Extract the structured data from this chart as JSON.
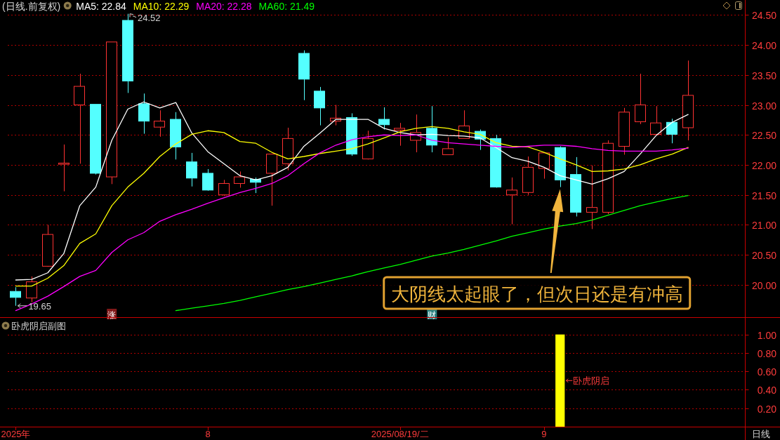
{
  "chart_data": [
    {
      "type": "candlestick",
      "title": "(日线.前复权)",
      "categories": [
        null,
        null,
        null,
        null,
        null,
        null,
        "涨",
        null,
        null,
        null,
        null,
        null,
        null,
        null,
        null,
        null,
        null,
        null,
        null,
        null,
        null,
        null,
        null,
        null,
        null,
        null,
        "财",
        null,
        null,
        null,
        null,
        null,
        null,
        null,
        null,
        null,
        null,
        null,
        null,
        null,
        null,
        null,
        null,
        null,
        null,
        null
      ],
      "ohlc": [
        [
          19.89,
          19.96,
          19.65,
          19.79
        ],
        [
          19.78,
          20.14,
          19.71,
          20.05
        ],
        [
          20.31,
          21.0,
          20.3,
          20.84
        ],
        [
          22.01,
          22.34,
          21.56,
          22.03
        ],
        [
          23.0,
          23.52,
          22.02,
          23.31
        ],
        [
          23.01,
          23.01,
          21.84,
          21.86
        ],
        [
          21.8,
          24.05,
          21.68,
          24.05
        ],
        [
          24.41,
          24.52,
          23.2,
          23.4
        ],
        [
          23.02,
          23.19,
          22.52,
          22.73
        ],
        [
          22.63,
          22.91,
          22.47,
          22.73
        ],
        [
          22.76,
          22.88,
          22.09,
          22.3
        ],
        [
          22.05,
          22.2,
          21.64,
          21.78
        ],
        [
          21.86,
          21.93,
          21.57,
          21.58
        ],
        [
          21.5,
          21.75,
          21.48,
          21.69
        ],
        [
          21.69,
          21.89,
          21.62,
          21.8
        ],
        [
          21.76,
          21.79,
          21.53,
          21.71
        ],
        [
          21.86,
          22.18,
          21.32,
          22.18
        ],
        [
          22.02,
          22.62,
          21.91,
          22.44
        ],
        [
          23.86,
          23.91,
          23.08,
          23.43
        ],
        [
          23.23,
          23.3,
          22.66,
          22.95
        ],
        [
          22.73,
          23.0,
          22.66,
          22.78
        ],
        [
          22.79,
          22.86,
          22.15,
          22.18
        ],
        [
          22.1,
          22.57,
          22.09,
          22.44
        ],
        [
          22.76,
          22.96,
          22.59,
          22.67
        ],
        [
          22.58,
          22.7,
          22.32,
          22.61
        ],
        [
          22.41,
          22.84,
          22.21,
          22.54
        ],
        [
          22.61,
          22.98,
          22.21,
          22.33
        ],
        [
          22.17,
          22.46,
          22.17,
          22.27
        ],
        [
          22.44,
          22.91,
          22.44,
          22.65
        ],
        [
          22.56,
          22.59,
          22.25,
          22.43
        ],
        [
          22.44,
          22.5,
          21.62,
          21.63
        ],
        [
          21.5,
          21.79,
          21.01,
          21.58
        ],
        [
          21.54,
          22.14,
          21.5,
          21.96
        ],
        [
          21.94,
          22.2,
          21.77,
          22.2
        ],
        [
          22.29,
          22.31,
          21.63,
          21.75
        ],
        [
          21.84,
          22.13,
          21.14,
          21.21
        ],
        [
          21.21,
          21.99,
          20.93,
          21.29
        ],
        [
          21.21,
          22.41,
          21.18,
          22.36
        ],
        [
          22.31,
          22.95,
          22.17,
          22.88
        ],
        [
          22.72,
          23.52,
          22.68,
          23.0
        ],
        [
          22.51,
          22.98,
          22.5,
          22.7
        ],
        [
          22.71,
          22.77,
          22.36,
          22.51
        ],
        [
          22.62,
          23.74,
          22.41,
          23.16
        ],
        null,
        null,
        null
      ],
      "colors": [
        "#54ffff",
        "#ff3232",
        "#ff3232",
        "#ff3232",
        "#ff3232",
        "#54ffff",
        "#ff3232",
        "#54ffff",
        "#54ffff",
        "#ff3232",
        "#54ffff",
        "#54ffff",
        "#54ffff",
        "#ff3232",
        "#ff3232",
        "#54ffff",
        "#ff3232",
        "#ff3232",
        "#54ffff",
        "#54ffff",
        "#ff3232",
        "#54ffff",
        "#ff3232",
        "#54ffff",
        "#ff3232",
        "#ff3232",
        "#54ffff",
        "#ff3232",
        "#ff3232",
        "#54ffff",
        "#54ffff",
        "#ff3232",
        "#ff3232",
        "#ff3232",
        "#54ffff",
        "#54ffff",
        "#ff3232",
        "#ff3232",
        "#ff3232",
        "#ff3232",
        "#ff3232",
        "#54ffff",
        "#ff3232",
        null,
        null,
        null
      ],
      "series": [
        {
          "name": "MA5: 22.84",
          "type": "line",
          "color": "#ffffff",
          "values": [
            20.08,
            20.09,
            20.2,
            20.52,
            21.32,
            21.63,
            22.41,
            22.93,
            23.05,
            22.95,
            23.04,
            22.53,
            22.22,
            22.02,
            21.82,
            21.75,
            21.82,
            21.96,
            22.31,
            22.53,
            22.76,
            22.76,
            22.76,
            22.61,
            22.54,
            22.5,
            22.51,
            22.49,
            22.48,
            22.45,
            22.29,
            22.12,
            22.06,
            21.96,
            21.82,
            21.75,
            21.68,
            21.77,
            21.89,
            22.18,
            22.49,
            22.71,
            22.84,
            null,
            null,
            null
          ]
        },
        {
          "name": "MA10: 22.29",
          "type": "line",
          "color": "#ffff00",
          "values": [
            19.98,
            19.98,
            20.11,
            20.32,
            20.69,
            20.85,
            21.32,
            21.63,
            21.86,
            22.14,
            22.35,
            22.51,
            22.57,
            22.54,
            22.39,
            22.36,
            22.21,
            22.1,
            22.14,
            22.19,
            22.23,
            22.27,
            22.35,
            22.45,
            22.55,
            22.61,
            22.64,
            22.61,
            22.55,
            22.51,
            22.37,
            22.31,
            22.3,
            22.21,
            22.1,
            22.0,
            21.89,
            21.9,
            21.93,
            22.0,
            22.1,
            22.18,
            22.29,
            null,
            null,
            null
          ]
        },
        {
          "name": "MA20: 22.28",
          "type": "line",
          "color": "#ff00ff",
          "values": [
            19.57,
            19.68,
            19.81,
            19.97,
            20.14,
            20.24,
            20.54,
            20.75,
            20.87,
            21.06,
            21.17,
            21.26,
            21.36,
            21.45,
            21.54,
            21.61,
            21.69,
            21.82,
            22.02,
            22.2,
            22.33,
            22.42,
            22.47,
            22.5,
            22.49,
            22.5,
            22.41,
            22.37,
            22.35,
            22.33,
            22.31,
            22.29,
            22.31,
            22.33,
            22.33,
            22.31,
            22.27,
            22.24,
            22.23,
            22.23,
            22.23,
            22.25,
            22.28,
            null,
            null,
            null
          ]
        },
        {
          "name": "MA60: 21.49",
          "type": "line",
          "color": "#00ff00",
          "values": [
            null,
            null,
            null,
            null,
            null,
            null,
            null,
            null,
            null,
            null,
            19.57,
            19.61,
            19.65,
            19.69,
            19.74,
            19.8,
            19.86,
            19.92,
            19.97,
            20.03,
            20.09,
            20.15,
            20.22,
            20.28,
            20.34,
            20.41,
            20.48,
            20.53,
            20.59,
            20.66,
            20.73,
            20.81,
            20.87,
            20.93,
            20.98,
            21.02,
            21.08,
            21.16,
            21.24,
            21.32,
            21.38,
            21.44,
            21.49,
            null,
            null,
            null
          ]
        }
      ],
      "ylim": [
        19.46,
        24.75
      ],
      "yticks": [
        {
          "value": 20.0,
          "label": "20.00"
        },
        {
          "value": 20.5,
          "label": "20.50"
        },
        {
          "value": 21.0,
          "label": "21.00"
        },
        {
          "value": 21.5,
          "label": "21.50"
        },
        {
          "value": 22.0,
          "label": "22.00"
        },
        {
          "value": 22.5,
          "label": "22.50"
        },
        {
          "value": 23.0,
          "label": "23.00"
        },
        {
          "value": 23.5,
          "label": "23.50"
        },
        {
          "value": 24.0,
          "label": "24.00"
        },
        {
          "value": 24.5,
          "label": "24.50"
        }
      ],
      "grid": "y",
      "legend": "top left",
      "annotations": [
        "24.52",
        "19.65",
        "大阴线太起眼了，但次日还是有冲高"
      ]
    },
    {
      "type": "bar",
      "title": "卧虎阴启副图",
      "categories": [
        "2025年",
        null,
        null,
        null,
        null,
        null,
        null,
        null,
        null,
        null,
        null,
        null,
        "8",
        null,
        null,
        null,
        null,
        null,
        null,
        null,
        null,
        null,
        null,
        null,
        "2025/08/19/二",
        null,
        null,
        null,
        null,
        null,
        null,
        null,
        null,
        "9",
        null,
        null,
        null,
        null,
        null,
        null,
        null,
        null,
        null,
        null,
        null,
        null
      ],
      "values": [
        null,
        null,
        null,
        null,
        null,
        null,
        null,
        null,
        null,
        null,
        null,
        null,
        null,
        null,
        null,
        null,
        null,
        null,
        null,
        null,
        null,
        null,
        null,
        null,
        null,
        null,
        null,
        null,
        null,
        null,
        null,
        null,
        null,
        null,
        1,
        null,
        null,
        null,
        null,
        null,
        null,
        null,
        null,
        null,
        null,
        null
      ],
      "color": "#ffff00",
      "ylim": [
        0,
        1.18
      ],
      "yticks": [
        {
          "value": 0.2,
          "label": "0.20"
        },
        {
          "value": 0.4,
          "label": "0.40"
        },
        {
          "value": 0.6,
          "label": "0.60"
        },
        {
          "value": 0.8,
          "label": "0.80"
        },
        {
          "value": 1.0,
          "label": "1.00"
        }
      ],
      "grid": "y",
      "annotations": [
        "卧虎阴启",
        "日线"
      ]
    }
  ]
}
